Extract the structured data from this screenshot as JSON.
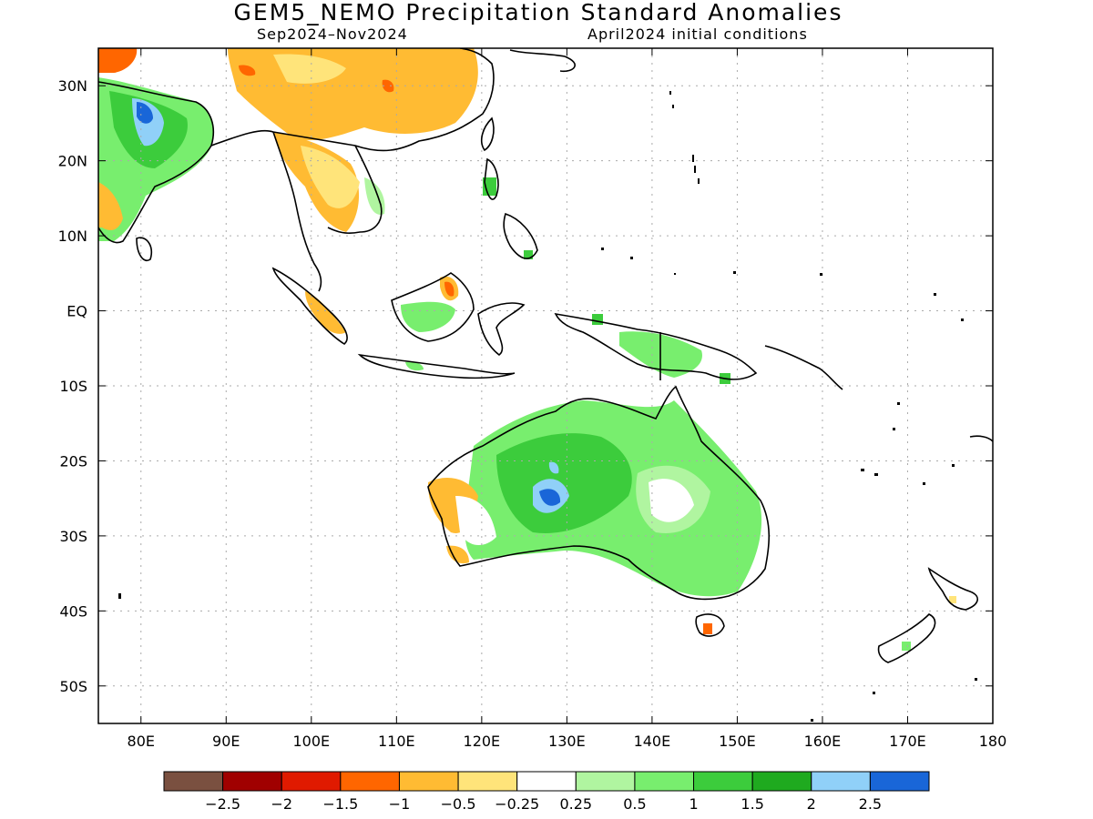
{
  "title": "GEM5_NEMO Precipitation Standard Anomalies",
  "period": "Sep2024–Nov2024",
  "conditions": "April2024 initial conditions",
  "lat_ticks": [
    "30N",
    "20N",
    "10N",
    "EQ",
    "10S",
    "20S",
    "30S",
    "40S",
    "50S"
  ],
  "lon_ticks": [
    "80E",
    "90E",
    "100E",
    "110E",
    "120E",
    "130E",
    "140E",
    "150E",
    "160E",
    "170E",
    "180"
  ],
  "map_extent": {
    "lon_min": 75,
    "lon_max": 180,
    "lat_min": -55,
    "lat_max": 35
  },
  "colorbar": {
    "colors": [
      "#7a5040",
      "#a00000",
      "#e01a00",
      "#ff6600",
      "#ffbb33",
      "#ffe47a",
      "#ffffff",
      "#b0f5a0",
      "#78ee6e",
      "#3ccc3c",
      "#1faa1f",
      "#90d0f8",
      "#1966d8"
    ],
    "labels": [
      "−2.5",
      "−2",
      "−1.5",
      "−1",
      "−0.5",
      "−0.25",
      "0.25",
      "0.5",
      "1",
      "1.5",
      "2",
      "2.5"
    ]
  }
}
